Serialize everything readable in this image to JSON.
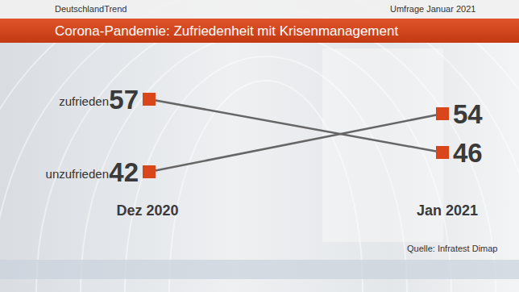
{
  "chart_data": {
    "type": "line",
    "header": "DeutschlandTrend",
    "survey": "Umfrage Januar 2021",
    "title": "Corona-Pandemie: Zufriedenheit mit Krisenmanagement",
    "source": "Quelle: Infratest Dimap",
    "categories": [
      "Dez 2020",
      "Jan 2021"
    ],
    "series": [
      {
        "name": "zufrieden",
        "color": "#d9461c",
        "values": [
          57,
          46
        ]
      },
      {
        "name": "unzufrieden",
        "color": "#d9461c",
        "values": [
          42,
          54
        ]
      }
    ],
    "ylim": [
      40,
      60
    ],
    "tick_labels": false,
    "data_labels": true,
    "marker": "square",
    "legend": "left"
  }
}
